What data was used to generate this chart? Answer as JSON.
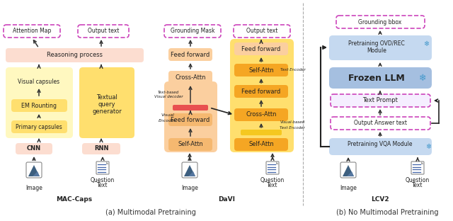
{
  "fig_width": 6.4,
  "fig_height": 3.12,
  "dpi": 100,
  "bg_color": "#ffffff",
  "colors": {
    "peach_light": "#FCDDD0",
    "yellow_light": "#FFF8C0",
    "yellow_mid": "#FFDF6E",
    "orange_dark": "#F5A623",
    "orange_med": "#F5B870",
    "orange_light": "#FBCF9F",
    "pink_dashed": "#CC44BB",
    "blue_light": "#C5D9F0",
    "blue_med": "#A5BFE0",
    "blue_dark": "#8AADD8",
    "purple_light": "#EEE0FF",
    "red_bar": "#E85050",
    "yellow_bar": "#F5C820",
    "white": "#FFFFFF",
    "text_dark": "#222222",
    "arrow_col": "#333333",
    "snowflake": "#4499CC"
  },
  "subtitle_a": "(a) Multimodal Pretraining",
  "subtitle_b": "(b) No Multimodal Pretraining",
  "label_maccaps": "MAC-Caps",
  "label_davi": "DaVI",
  "label_lcv2": "LCV2"
}
